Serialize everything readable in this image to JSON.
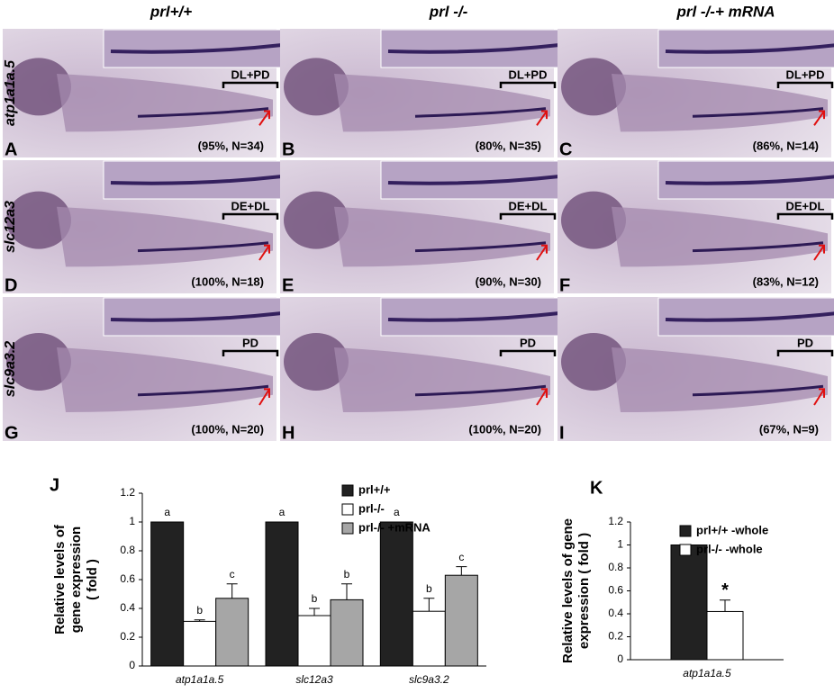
{
  "figure": {
    "columns": [
      "prl+/+",
      "prl -/-",
      "prl -/-+ mRNA"
    ],
    "rows": [
      {
        "label": "atp1a1a.5",
        "panels": [
          {
            "letter": "A",
            "region": "DL+PD",
            "stat": "(95%, N=34)"
          },
          {
            "letter": "B",
            "region": "DL+PD",
            "stat": "(80%, N=35)"
          },
          {
            "letter": "C",
            "region": "DL+PD",
            "stat": "(86%, N=14)"
          }
        ]
      },
      {
        "label": "slc12a3",
        "panels": [
          {
            "letter": "D",
            "region": "DE+DL",
            "stat": "(100%, N=18)"
          },
          {
            "letter": "E",
            "region": "DE+DL",
            "stat": "(90%, N=30)"
          },
          {
            "letter": "F",
            "region": "DE+DL",
            "stat": "(83%, N=12)"
          }
        ]
      },
      {
        "label": "slc9a3.2",
        "panels": [
          {
            "letter": "G",
            "region": "PD",
            "stat": "(100%, N=20)"
          },
          {
            "letter": "H",
            "region": "PD",
            "stat": "(100%, N=20)"
          },
          {
            "letter": "I",
            "region": "PD",
            "stat": "(67%, N=9)"
          }
        ]
      }
    ]
  },
  "chart_data": [
    {
      "type": "bar",
      "label": "J",
      "ylabel": [
        "Relative levels of",
        "gene expression",
        "( fold )"
      ],
      "categories": [
        "atp1a1a.5",
        "slc12a3",
        "slc9a3.2"
      ],
      "series": [
        {
          "name": "prl+/+",
          "color": "#222222",
          "values": [
            1,
            1,
            1
          ],
          "letters": [
            "a",
            "a",
            "a"
          ]
        },
        {
          "name": "prl-/-",
          "color": "#ffffff",
          "values": [
            0.31,
            0.35,
            0.38
          ],
          "errors": [
            0.01,
            0.05,
            0.09
          ],
          "letters": [
            "b",
            "b",
            "b"
          ]
        },
        {
          "name": "prl-/- +mRNA",
          "color": "#a6a6a6",
          "values": [
            0.47,
            0.46,
            0.63
          ],
          "errors": [
            0.1,
            0.11,
            0.06
          ],
          "letters": [
            "c",
            "b",
            "c"
          ]
        }
      ],
      "ylim": [
        0,
        1.2
      ],
      "yticks": [
        0,
        0.2,
        0.4,
        0.6,
        0.8,
        1,
        1.2
      ]
    },
    {
      "type": "bar",
      "label": "K",
      "ylabel": [
        "Relative levels of gene",
        "expression ( fold )"
      ],
      "categories": [
        "atp1a1a.5"
      ],
      "series": [
        {
          "name": "prl+/+ -whole",
          "color": "#222222",
          "values": [
            1
          ]
        },
        {
          "name": "prl-/- -whole",
          "color": "#ffffff",
          "values": [
            0.42
          ],
          "errors": [
            0.1
          ],
          "letters": [
            "*"
          ]
        }
      ],
      "ylim": [
        0,
        1.2
      ],
      "yticks": [
        0,
        0.2,
        0.4,
        0.6,
        0.8,
        1,
        1.2
      ]
    }
  ]
}
